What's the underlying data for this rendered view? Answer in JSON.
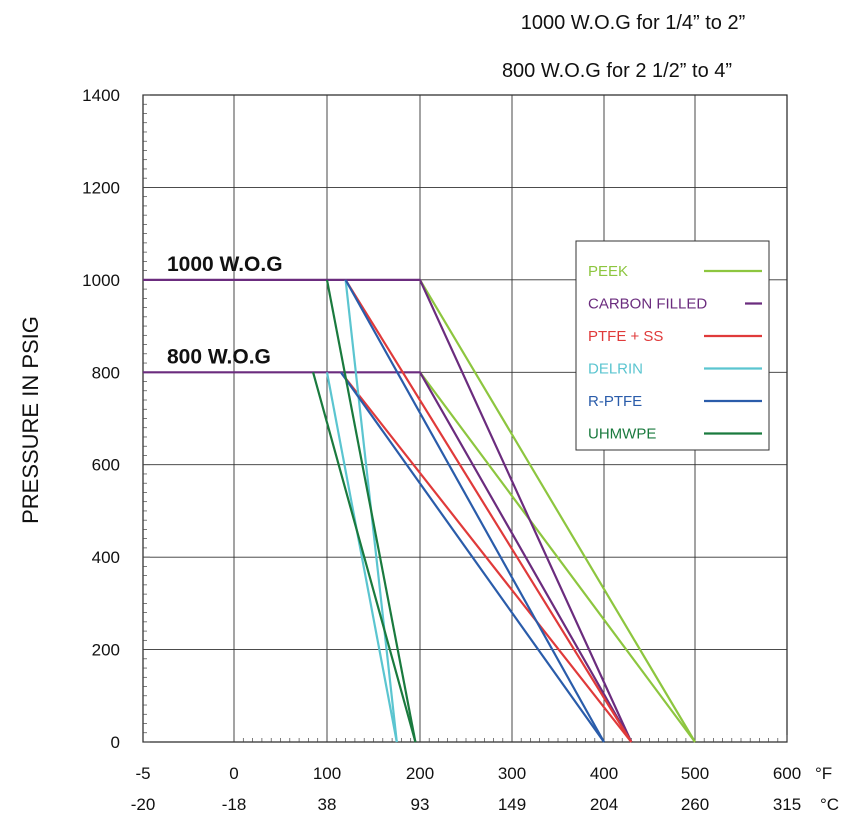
{
  "chart_data": {
    "type": "line",
    "title_lines": [
      "1000 W.O.G for 1/4” to 2”",
      "800 W.O.G for 2 1/2” to 4”"
    ],
    "ylabel": "PRESSURE IN PSIG",
    "x_unit_f": "°F",
    "x_unit_c": "°C",
    "xlim": [
      -5,
      600
    ],
    "ylim": [
      0,
      1400
    ],
    "x_ticks_f": [
      "-5",
      "0",
      "100",
      "200",
      "300",
      "400",
      "500",
      "600"
    ],
    "x_ticks_c": [
      "-20",
      "-18",
      "38",
      "93",
      "149",
      "204",
      "260",
      "315"
    ],
    "y_ticks": [
      "0",
      "200",
      "400",
      "600",
      "800",
      "1000",
      "1200",
      "1400"
    ],
    "grid": true,
    "legend_position": "upper-right",
    "ratings": [
      {
        "label": "1000 W.O.G",
        "value": 1000
      },
      {
        "label": "800 W.O.G",
        "value": 800
      }
    ],
    "series": [
      {
        "name": "PEEK",
        "color": "#8dc63f",
        "lines": [
          [
            [
              200,
              1000
            ],
            [
              500,
              0
            ]
          ],
          [
            [
              200,
              800
            ],
            [
              500,
              0
            ]
          ]
        ]
      },
      {
        "name": "CARBON FILLED",
        "color": "#6b2c7e",
        "lines": [
          [
            [
              -5,
              1000
            ],
            [
              200,
              1000
            ],
            [
              430,
              0
            ]
          ],
          [
            [
              -5,
              800
            ],
            [
              200,
              800
            ],
            [
              430,
              0
            ]
          ]
        ]
      },
      {
        "name": "PTFE + SS",
        "color": "#e03a3a",
        "lines": [
          [
            [
              120,
              1000
            ],
            [
              430,
              0
            ]
          ],
          [
            [
              115,
              800
            ],
            [
              430,
              0
            ]
          ]
        ]
      },
      {
        "name": "DELRIN",
        "color": "#5bc5d0",
        "lines": [
          [
            [
              120,
              1000
            ],
            [
              175,
              0
            ]
          ],
          [
            [
              100,
              800
            ],
            [
              175,
              0
            ]
          ]
        ]
      },
      {
        "name": "R-PTFE",
        "color": "#2a5caa",
        "lines": [
          [
            [
              120,
              1000
            ],
            [
              400,
              0
            ]
          ],
          [
            [
              115,
              800
            ],
            [
              400,
              0
            ]
          ]
        ]
      },
      {
        "name": "UHMWPE",
        "color": "#1a7a3e",
        "lines": [
          [
            [
              100,
              1000
            ],
            [
              195,
              0
            ]
          ],
          [
            [
              85,
              800
            ],
            [
              195,
              0
            ]
          ]
        ]
      }
    ]
  }
}
